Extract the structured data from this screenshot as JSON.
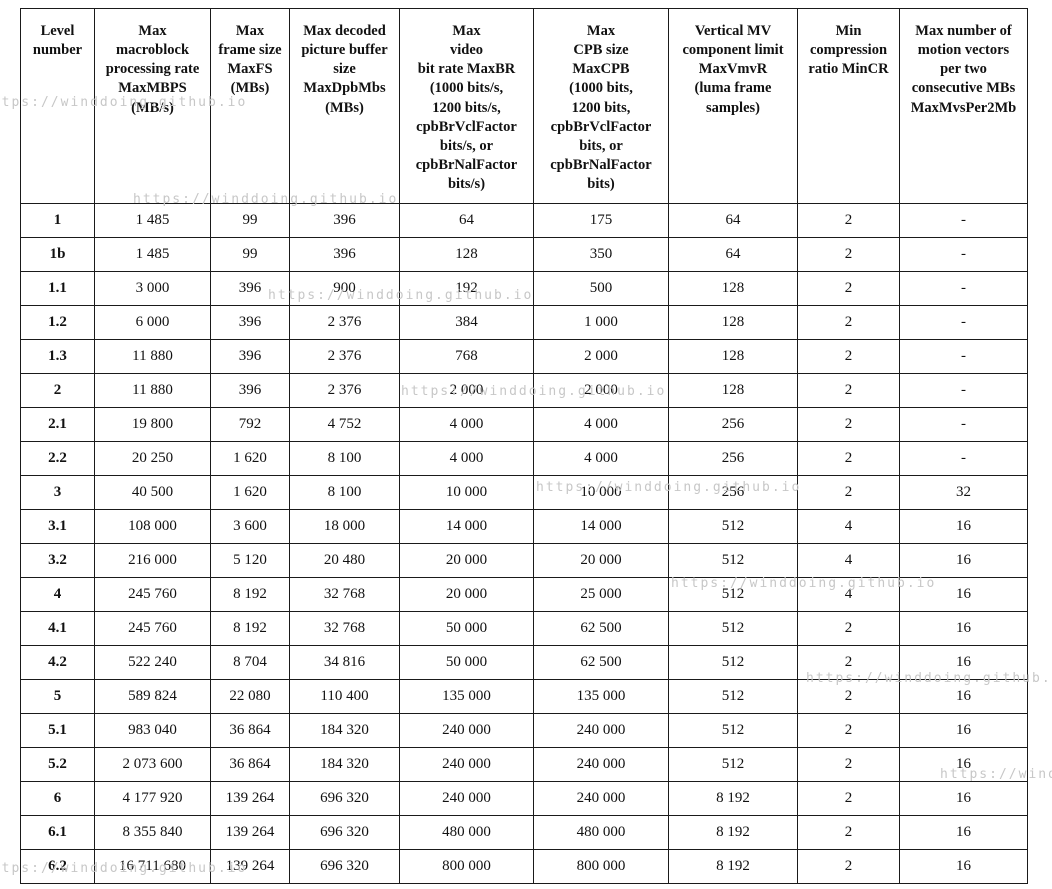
{
  "watermark": {
    "text": "https://winddoing.github.io"
  },
  "table": {
    "headers": [
      "Level\nnumber",
      "Max\nmacroblock\nprocessing rate\nMaxMBPS\n(MB/s)",
      "Max\nframe size\nMaxFS\n(MBs)",
      "Max decoded\npicture buffer\nsize\nMaxDpbMbs\n(MBs)",
      "Max\nvideo\nbit rate MaxBR\n(1000 bits/s,\n1200 bits/s,\ncpbBrVclFactor\nbits/s, or\ncpbBrNalFactor\nbits/s)",
      "Max\nCPB size\nMaxCPB\n(1000 bits,\n1200 bits,\ncpbBrVclFactor\nbits, or\ncpbBrNalFactor\nbits)",
      "Vertical MV\ncomponent limit\nMaxVmvR\n(luma frame\nsamples)",
      "Min\ncompression\nratio MinCR",
      "Max number of\nmotion vectors\nper two\nconsecutive MBs\nMaxMvsPer2Mb"
    ],
    "rows": [
      [
        "1",
        "1 485",
        "99",
        "396",
        "64",
        "175",
        "64",
        "2",
        "-"
      ],
      [
        "1b",
        "1 485",
        "99",
        "396",
        "128",
        "350",
        "64",
        "2",
        "-"
      ],
      [
        "1.1",
        "3 000",
        "396",
        "900",
        "192",
        "500",
        "128",
        "2",
        "-"
      ],
      [
        "1.2",
        "6 000",
        "396",
        "2 376",
        "384",
        "1 000",
        "128",
        "2",
        "-"
      ],
      [
        "1.3",
        "11 880",
        "396",
        "2 376",
        "768",
        "2 000",
        "128",
        "2",
        "-"
      ],
      [
        "2",
        "11 880",
        "396",
        "2 376",
        "2 000",
        "2 000",
        "128",
        "2",
        "-"
      ],
      [
        "2.1",
        "19 800",
        "792",
        "4 752",
        "4 000",
        "4 000",
        "256",
        "2",
        "-"
      ],
      [
        "2.2",
        "20 250",
        "1 620",
        "8 100",
        "4 000",
        "4 000",
        "256",
        "2",
        "-"
      ],
      [
        "3",
        "40 500",
        "1 620",
        "8 100",
        "10 000",
        "10 000",
        "256",
        "2",
        "32"
      ],
      [
        "3.1",
        "108 000",
        "3 600",
        "18 000",
        "14 000",
        "14 000",
        "512",
        "4",
        "16"
      ],
      [
        "3.2",
        "216 000",
        "5 120",
        "20 480",
        "20 000",
        "20 000",
        "512",
        "4",
        "16"
      ],
      [
        "4",
        "245 760",
        "8 192",
        "32 768",
        "20 000",
        "25 000",
        "512",
        "4",
        "16"
      ],
      [
        "4.1",
        "245 760",
        "8 192",
        "32 768",
        "50 000",
        "62 500",
        "512",
        "2",
        "16"
      ],
      [
        "4.2",
        "522 240",
        "8 704",
        "34 816",
        "50 000",
        "62 500",
        "512",
        "2",
        "16"
      ],
      [
        "5",
        "589 824",
        "22 080",
        "110 400",
        "135 000",
        "135 000",
        "512",
        "2",
        "16"
      ],
      [
        "5.1",
        "983 040",
        "36 864",
        "184 320",
        "240 000",
        "240 000",
        "512",
        "2",
        "16"
      ],
      [
        "5.2",
        "2 073 600",
        "36 864",
        "184 320",
        "240 000",
        "240 000",
        "512",
        "2",
        "16"
      ],
      [
        "6",
        "4 177 920",
        "139 264",
        "696 320",
        "240 000",
        "240 000",
        "8 192",
        "2",
        "16"
      ],
      [
        "6.1",
        "8 355 840",
        "139 264",
        "696 320",
        "480 000",
        "480 000",
        "8 192",
        "2",
        "16"
      ],
      [
        "6.2",
        "16 711 680",
        "139 264",
        "696 320",
        "800 000",
        "800 000",
        "8 192",
        "2",
        "16"
      ]
    ]
  }
}
